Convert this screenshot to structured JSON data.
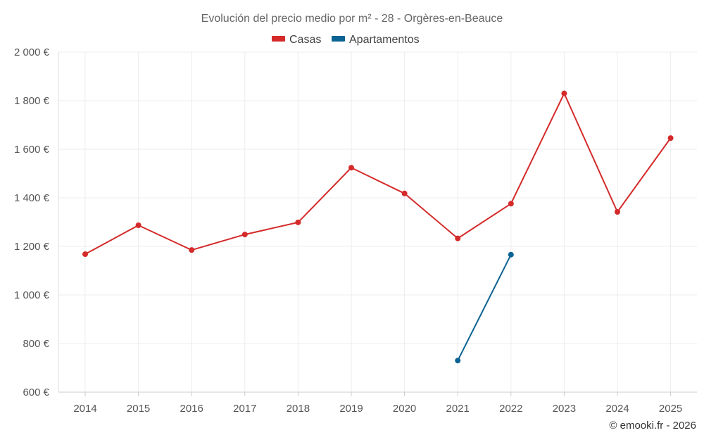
{
  "chart_data": {
    "type": "line",
    "title": "Evolución del precio medio por m² - 28 - Orgères-en-Beauce",
    "categories": [
      "2014",
      "2015",
      "2016",
      "2017",
      "2018",
      "2019",
      "2020",
      "2021",
      "2022",
      "2023",
      "2024",
      "2025"
    ],
    "y_ticks": [
      "600 €",
      "800 €",
      "1 000 €",
      "1 200 €",
      "1 400 €",
      "1 600 €",
      "1 800 €",
      "2 000 €"
    ],
    "ylim": [
      600,
      2000
    ],
    "ytick_values": [
      600,
      800,
      1000,
      1200,
      1400,
      1600,
      1800,
      2000
    ],
    "grid": true,
    "legend_position": "top-center",
    "series": [
      {
        "name": "Casas",
        "color": "#d42a2a",
        "values": [
          1168,
          1287,
          1185,
          1249,
          1299,
          1524,
          1418,
          1233,
          1376,
          1830,
          1342,
          1646
        ]
      },
      {
        "name": "Apartamentos",
        "color": "#0b6394",
        "values": [
          null,
          null,
          null,
          null,
          null,
          null,
          null,
          730,
          1166,
          null,
          null,
          null
        ]
      }
    ],
    "credit": "© emooki.fr - 2026"
  }
}
